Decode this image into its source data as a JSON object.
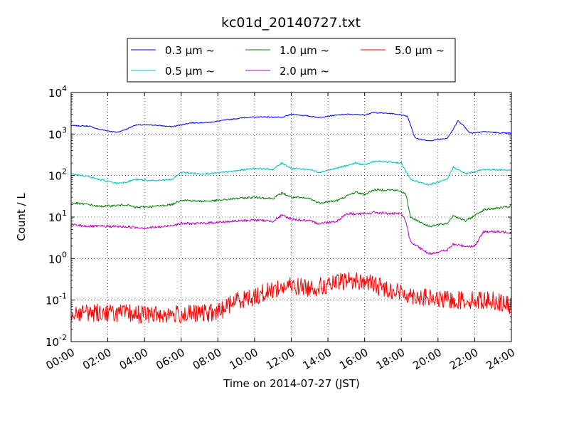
{
  "chart_data": {
    "type": "line",
    "title": "kc01d_20140727.txt",
    "xlabel": "Time on 2014-07-27 (JST)",
    "ylabel": "Count / L",
    "yscale": "log",
    "ylim": [
      0.01,
      10000
    ],
    "xlim": [
      "00:00",
      "24:00"
    ],
    "grid": true,
    "legend_position": "top-center, outside",
    "x_ticks": [
      "00:00",
      "02:00",
      "04:00",
      "06:00",
      "08:00",
      "10:00",
      "12:00",
      "14:00",
      "16:00",
      "18:00",
      "20:00",
      "22:00",
      "24:00"
    ],
    "y_ticks": [
      {
        "value": 0.01,
        "base": "10",
        "exp": "-2"
      },
      {
        "value": 0.1,
        "base": "10",
        "exp": "-1"
      },
      {
        "value": 1,
        "base": "10",
        "exp": "0"
      },
      {
        "value": 10,
        "base": "10",
        "exp": "1"
      },
      {
        "value": 100,
        "base": "10",
        "exp": "2"
      },
      {
        "value": 1000,
        "base": "10",
        "exp": "3"
      },
      {
        "value": 10000,
        "base": "10",
        "exp": "4"
      }
    ],
    "series": [
      {
        "name": "0.3 μm ~",
        "color": "#0000ff",
        "noise": 0.012,
        "points": [
          [
            "00:00",
            1600
          ],
          [
            "01:00",
            1550
          ],
          [
            "01:30",
            1300
          ],
          [
            "02:30",
            1100
          ],
          [
            "03:00",
            1300
          ],
          [
            "03:30",
            1650
          ],
          [
            "04:30",
            1650
          ],
          [
            "05:30",
            1500
          ],
          [
            "06:30",
            1850
          ],
          [
            "07:30",
            1900
          ],
          [
            "08:30",
            2200
          ],
          [
            "09:30",
            2500
          ],
          [
            "10:30",
            2600
          ],
          [
            "11:30",
            2500
          ],
          [
            "12:00",
            3000
          ],
          [
            "13:00",
            2700
          ],
          [
            "13:30",
            2500
          ],
          [
            "14:00",
            2700
          ],
          [
            "15:00",
            3000
          ],
          [
            "16:00",
            2900
          ],
          [
            "16:30",
            3300
          ],
          [
            "17:30",
            3100
          ],
          [
            "18:00",
            2900
          ],
          [
            "18:20",
            2700
          ],
          [
            "18:45",
            800
          ],
          [
            "19:30",
            680
          ],
          [
            "20:30",
            800
          ],
          [
            "20:50",
            1300
          ],
          [
            "21:05",
            2100
          ],
          [
            "21:20",
            1700
          ],
          [
            "21:45",
            1050
          ],
          [
            "22:30",
            1150
          ],
          [
            "23:30",
            1050
          ],
          [
            "24:00",
            1050
          ]
        ]
      },
      {
        "name": "0.5 μm ~",
        "color": "#00bfbf",
        "noise": 0.02,
        "points": [
          [
            "00:00",
            110
          ],
          [
            "01:00",
            95
          ],
          [
            "01:30",
            80
          ],
          [
            "02:30",
            65
          ],
          [
            "03:00",
            70
          ],
          [
            "03:30",
            80
          ],
          [
            "04:30",
            75
          ],
          [
            "05:30",
            80
          ],
          [
            "06:00",
            120
          ],
          [
            "07:00",
            110
          ],
          [
            "08:00",
            115
          ],
          [
            "09:00",
            130
          ],
          [
            "10:00",
            150
          ],
          [
            "11:00",
            140
          ],
          [
            "11:30",
            200
          ],
          [
            "12:00",
            150
          ],
          [
            "13:00",
            140
          ],
          [
            "13:30",
            120
          ],
          [
            "14:30",
            150
          ],
          [
            "15:30",
            200
          ],
          [
            "16:00",
            180
          ],
          [
            "16:30",
            220
          ],
          [
            "17:30",
            210
          ],
          [
            "18:00",
            200
          ],
          [
            "18:30",
            80
          ],
          [
            "19:30",
            60
          ],
          [
            "20:30",
            80
          ],
          [
            "20:50",
            160
          ],
          [
            "21:30",
            110
          ],
          [
            "22:30",
            140
          ],
          [
            "24:00",
            135
          ]
        ]
      },
      {
        "name": "1.0 μm ~",
        "color": "#008000",
        "noise": 0.025,
        "points": [
          [
            "00:00",
            22
          ],
          [
            "01:00",
            20
          ],
          [
            "01:30",
            18
          ],
          [
            "02:30",
            19
          ],
          [
            "03:00",
            20
          ],
          [
            "03:30",
            17
          ],
          [
            "04:30",
            18
          ],
          [
            "05:30",
            20
          ],
          [
            "06:00",
            26
          ],
          [
            "07:00",
            24
          ],
          [
            "08:00",
            25
          ],
          [
            "09:00",
            28
          ],
          [
            "10:00",
            30
          ],
          [
            "11:00",
            28
          ],
          [
            "11:30",
            38
          ],
          [
            "12:00",
            30
          ],
          [
            "13:00",
            28
          ],
          [
            "13:30",
            22
          ],
          [
            "14:30",
            25
          ],
          [
            "15:30",
            40
          ],
          [
            "16:00",
            35
          ],
          [
            "16:30",
            45
          ],
          [
            "17:30",
            45
          ],
          [
            "18:00",
            42
          ],
          [
            "18:15",
            35
          ],
          [
            "18:30",
            10
          ],
          [
            "19:30",
            6
          ],
          [
            "20:30",
            7
          ],
          [
            "20:50",
            11
          ],
          [
            "21:30",
            8
          ],
          [
            "22:30",
            15
          ],
          [
            "24:00",
            18
          ]
        ]
      },
      {
        "name": "2.0 μm ~",
        "color": "#bf00bf",
        "noise": 0.03,
        "points": [
          [
            "00:00",
            6.5
          ],
          [
            "01:00",
            6
          ],
          [
            "02:00",
            6
          ],
          [
            "03:00",
            5.8
          ],
          [
            "04:00",
            5.5
          ],
          [
            "05:00",
            5.8
          ],
          [
            "06:00",
            7
          ],
          [
            "07:00",
            7
          ],
          [
            "08:00",
            7.5
          ],
          [
            "09:00",
            8
          ],
          [
            "10:00",
            8.5
          ],
          [
            "11:00",
            8
          ],
          [
            "11:30",
            11
          ],
          [
            "12:00",
            9
          ],
          [
            "13:00",
            8
          ],
          [
            "13:30",
            7
          ],
          [
            "14:30",
            8
          ],
          [
            "15:00",
            12
          ],
          [
            "16:00",
            12
          ],
          [
            "16:30",
            13
          ],
          [
            "17:30",
            12
          ],
          [
            "18:00",
            12
          ],
          [
            "18:15",
            8
          ],
          [
            "18:30",
            2.5
          ],
          [
            "19:30",
            1.3
          ],
          [
            "20:30",
            1.6
          ],
          [
            "20:50",
            2.2
          ],
          [
            "21:30",
            2
          ],
          [
            "22:00",
            2
          ],
          [
            "22:30",
            4.5
          ],
          [
            "24:00",
            4.3
          ]
        ]
      },
      {
        "name": "5.0 μm ~",
        "color": "#ff0000",
        "noise": 0.22,
        "points": [
          [
            "00:00",
            0.05
          ],
          [
            "02:00",
            0.05
          ],
          [
            "04:00",
            0.045
          ],
          [
            "06:00",
            0.045
          ],
          [
            "08:00",
            0.05
          ],
          [
            "09:00",
            0.1
          ],
          [
            "10:00",
            0.12
          ],
          [
            "11:00",
            0.18
          ],
          [
            "12:00",
            0.22
          ],
          [
            "13:00",
            0.2
          ],
          [
            "14:00",
            0.22
          ],
          [
            "15:00",
            0.3
          ],
          [
            "16:00",
            0.28
          ],
          [
            "17:00",
            0.2
          ],
          [
            "18:00",
            0.15
          ],
          [
            "19:00",
            0.12
          ],
          [
            "20:00",
            0.1
          ],
          [
            "21:00",
            0.1
          ],
          [
            "22:00",
            0.1
          ],
          [
            "23:00",
            0.1
          ],
          [
            "24:00",
            0.07
          ]
        ]
      }
    ]
  }
}
